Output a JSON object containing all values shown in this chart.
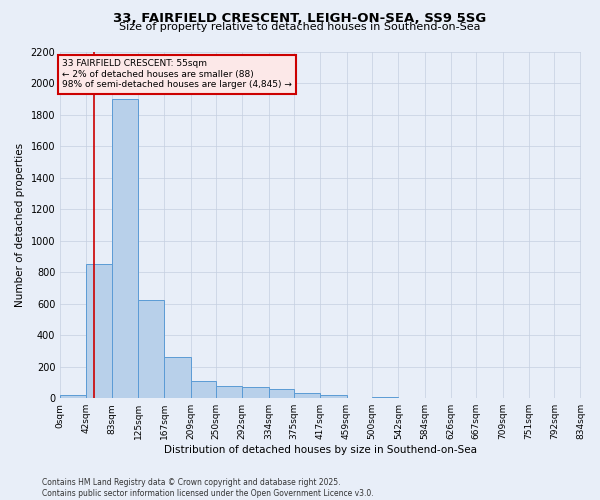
{
  "title_line1": "33, FAIRFIELD CRESCENT, LEIGH-ON-SEA, SS9 5SG",
  "title_line2": "Size of property relative to detached houses in Southend-on-Sea",
  "xlabel": "Distribution of detached houses by size in Southend-on-Sea",
  "ylabel": "Number of detached properties",
  "annotation_text": "33 FAIRFIELD CRESCENT: 55sqm\n← 2% of detached houses are smaller (88)\n98% of semi-detached houses are larger (4,845) →",
  "footer_line1": "Contains HM Land Registry data © Crown copyright and database right 2025.",
  "footer_line2": "Contains public sector information licensed under the Open Government Licence v3.0.",
  "bin_edges": [
    0,
    42,
    83,
    125,
    167,
    209,
    250,
    292,
    334,
    375,
    417,
    459,
    500,
    542,
    584,
    626,
    667,
    709,
    751,
    792,
    834
  ],
  "bin_counts": [
    20,
    850,
    1900,
    620,
    260,
    110,
    80,
    70,
    60,
    30,
    20,
    0,
    10,
    0,
    0,
    0,
    0,
    0,
    0,
    0
  ],
  "bar_color": "#b8d0ea",
  "bar_edge_color": "#5b9bd5",
  "vline_color": "#cc0000",
  "vline_x": 55,
  "ylim": [
    0,
    2200
  ],
  "yticks": [
    0,
    200,
    400,
    600,
    800,
    1000,
    1200,
    1400,
    1600,
    1800,
    2000,
    2200
  ],
  "background_color": "#e8eef8",
  "grid_color": "#c5cfe0",
  "ann_facecolor": "#fce8e8",
  "ann_edgecolor": "#cc0000"
}
